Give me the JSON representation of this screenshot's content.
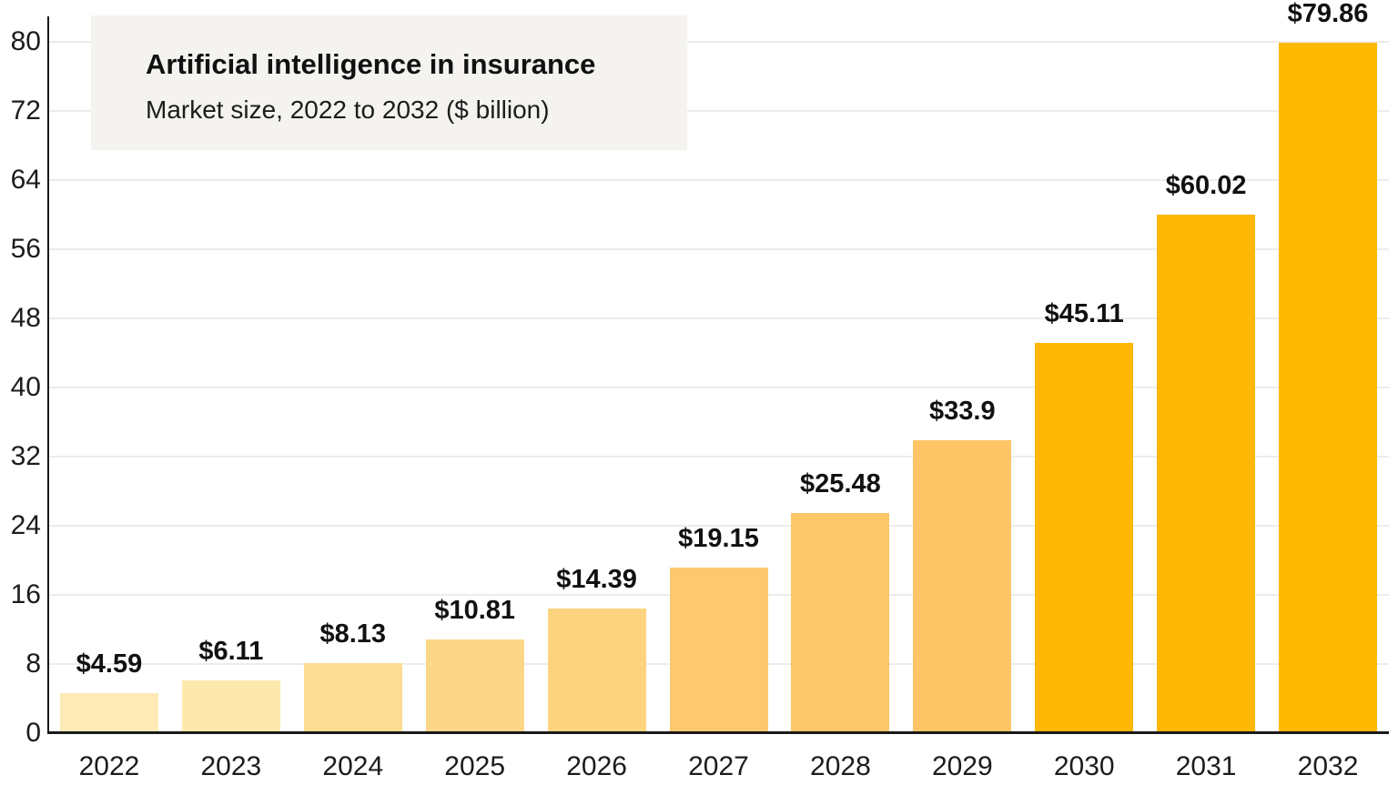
{
  "header": {
    "title": "Artificial intelligence in insurance",
    "subtitle": "Market size, 2022 to 2032 ($ billion)"
  },
  "chart_data": {
    "type": "bar",
    "title": "Artificial intelligence in insurance",
    "subtitle": "Market size, 2022 to 2032 ($ billion)",
    "categories": [
      "2022",
      "2023",
      "2024",
      "2025",
      "2026",
      "2027",
      "2028",
      "2029",
      "2030",
      "2031",
      "2032"
    ],
    "values": [
      4.59,
      6.11,
      8.13,
      10.81,
      14.39,
      19.15,
      25.48,
      33.9,
      45.11,
      60.02,
      79.86
    ],
    "value_labels": [
      "$4.59",
      "$6.11",
      "$8.13",
      "$10.81",
      "$14.39",
      "$19.15",
      "$25.48",
      "$33.9",
      "$45.11",
      "$60.02",
      "$79.86"
    ],
    "bar_colors": [
      "#fdeab6",
      "#fde8ae",
      "#fcdc92",
      "#fcd788",
      "#fcd480",
      "#fcc96e",
      "#fcc768",
      "#fdc566",
      "#feb703",
      "#feb702",
      "#feb800"
    ],
    "xlabel": "",
    "ylabel": "",
    "ylim": [
      0,
      84
    ],
    "yticks": [
      0,
      8,
      16,
      24,
      32,
      40,
      48,
      56,
      64,
      72,
      80
    ],
    "grid": "horizontal",
    "legend": "none"
  },
  "colors": {
    "background": "#ffffff",
    "title_box_bg": "#f5f3f0",
    "axis_line": "#1a1a1a",
    "gridline": "#eeeceb",
    "text": "#111111"
  }
}
